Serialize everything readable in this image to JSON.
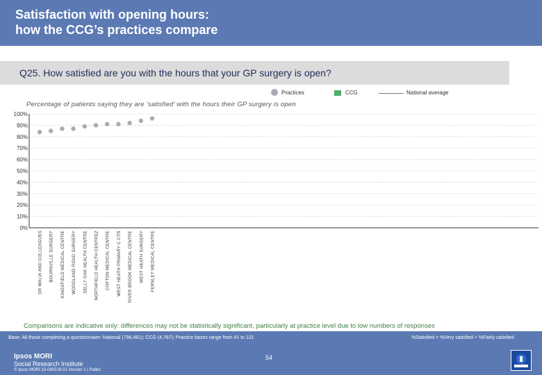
{
  "header": {
    "title_line1": "Satisfaction with opening hours:",
    "title_line2": "how the CCG’s practices compare"
  },
  "question": "Q25. How satisfied are you with the hours that your GP surgery is open?",
  "legend": {
    "practices": "Practices",
    "ccg": "CCG",
    "national": "National average"
  },
  "colors": {
    "header_bg": "#5b79b3",
    "practice_dot": "#a9abb4",
    "ccg": "#4caf6a",
    "national": "#777777",
    "note_green": "#3e7d41"
  },
  "chart_data": {
    "type": "scatter",
    "title": "Percentage of patients saying they are ‘satisfied’ with the hours their GP surgery is open",
    "ylim": [
      0,
      100
    ],
    "y_ticks": [
      "0%",
      "10%",
      "20%",
      "30%",
      "40%",
      "50%",
      "60%",
      "70%",
      "80%",
      "90%",
      "100%"
    ],
    "categories": [
      "DR WALIA AND COLLEAGUES",
      "BOURNVILLE SURGERY",
      "KINGSFIELD MEDICAL CENTRE",
      "WOODLAND ROAD SURGERY",
      "SELLY OAK HEALTH CENTRE",
      "NORTHFIELD HEALTH CENTREZ",
      "COFTON MEDICAL CENTRE",
      "WEST HEATH PRIMARY C CTR",
      "RIVER BROOK MEDICAL CENTRE",
      "WEST HEATH SURGERY",
      "FERNLEY MEDICAL CENTRE"
    ],
    "series": [
      {
        "name": "Practices",
        "values": [
          84,
          85,
          87,
          87,
          89,
          90,
          91,
          91,
          92,
          94,
          96
        ]
      }
    ]
  },
  "notes": {
    "comparison": "Comparisons are indicative only: differences may not be statistically significant, particularly at practice level due to low numbers of responses",
    "base": "Base: All those completing a questionnaire: National (796,461); CCG (4,767); Practice bases range from 41 to 131",
    "satisfied_def": "%Satisfied = %Very satisfied + %Fairly satisfied"
  },
  "footer": {
    "page_number": "54",
    "logo_line1": "Ipsos MORI",
    "logo_line2": "Social Research Institute",
    "copyright": "© Ipsos MORI     15-080216-01 Version 1 | Public"
  }
}
